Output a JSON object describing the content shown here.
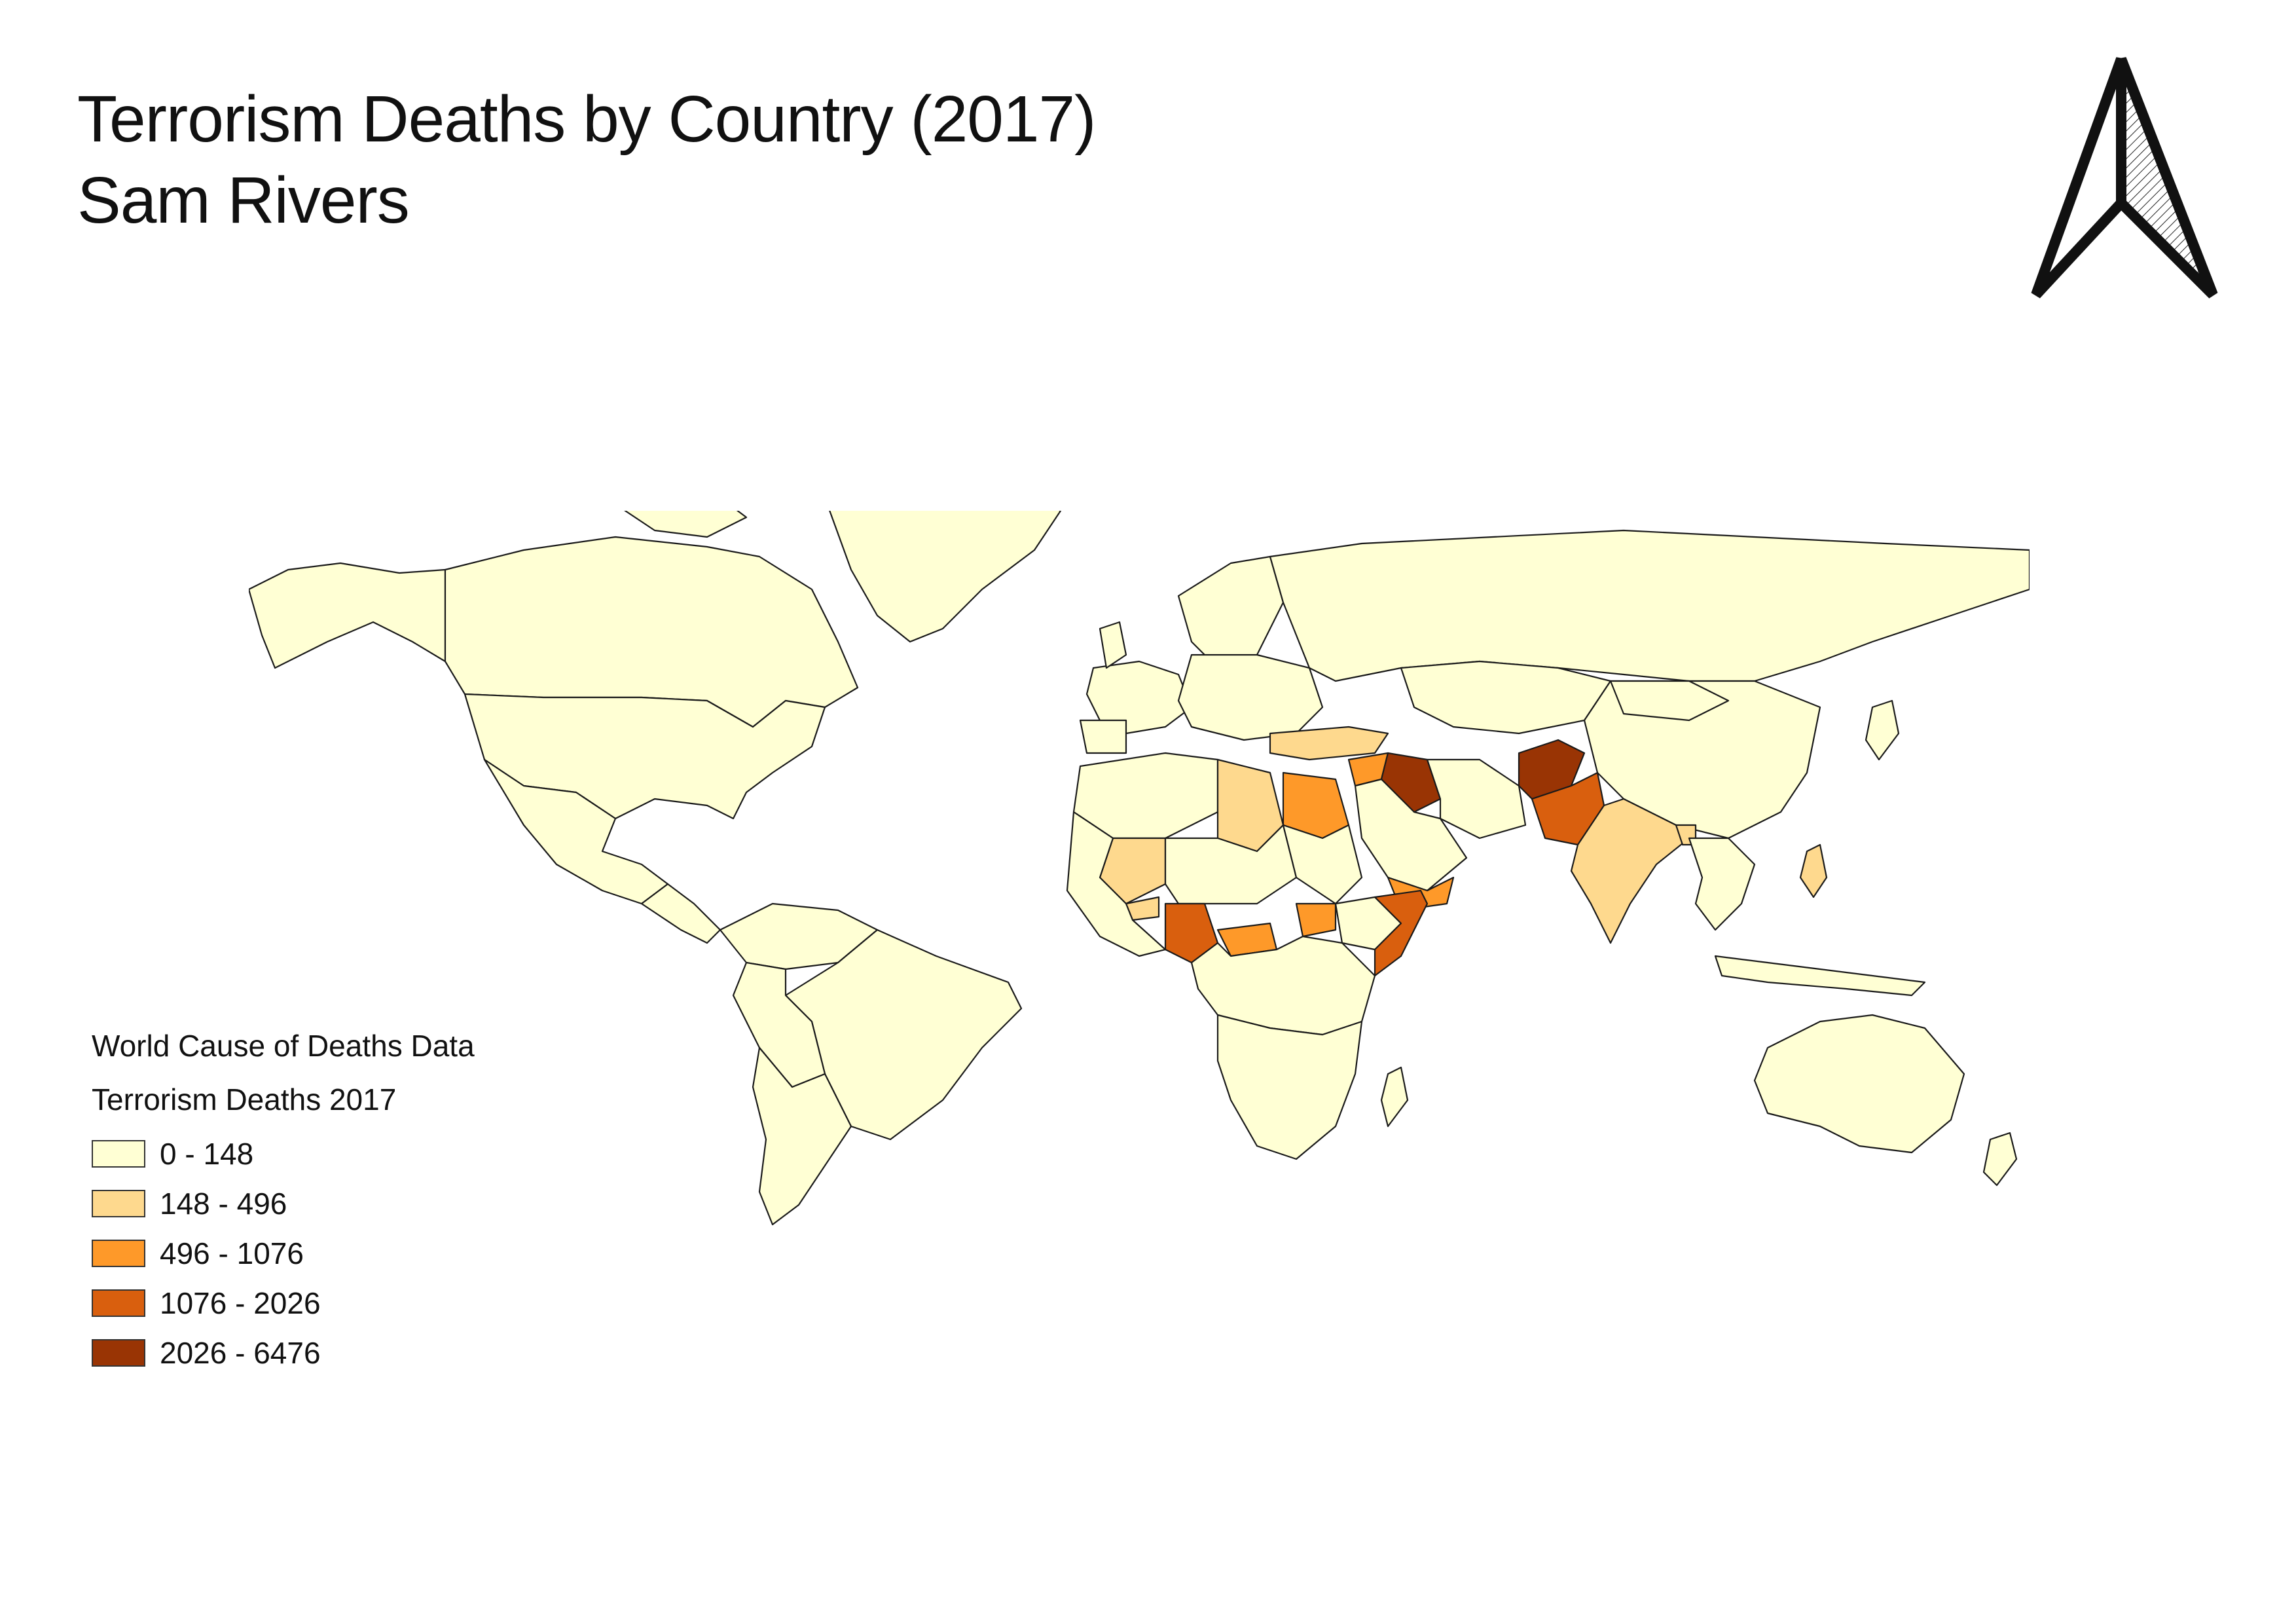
{
  "title": {
    "line1": "Terrorism Deaths by Country (2017)",
    "line2": "Sam Rivers"
  },
  "north_arrow": {
    "icon": "north-arrow-icon"
  },
  "legend": {
    "layer_name": "World Cause of Deaths Data",
    "field_name": "Terrorism Deaths 2017",
    "classes": [
      {
        "label": "0 - 148",
        "color": "#ffffd4"
      },
      {
        "label": "148 - 496",
        "color": "#fed98e"
      },
      {
        "label": "496 - 1076",
        "color": "#fe9929"
      },
      {
        "label": "1076 - 2026",
        "color": "#d95f0e"
      },
      {
        "label": "2026 - 6476",
        "color": "#993404"
      }
    ]
  },
  "map": {
    "country_classes": {
      "Afghanistan": 4,
      "Iraq": 4,
      "Nigeria": 3,
      "Somalia": 3,
      "Pakistan": 3,
      "Egypt": 2,
      "Syria": 2,
      "Yemen": 2,
      "Central African Republic": 2,
      "South Sudan": 2,
      "Libya": 1,
      "Mali": 1,
      "Turkey": 1,
      "India": 1,
      "Philippines": 1,
      "Burkina Faso": 1,
      "Bangladesh": 1
    }
  }
}
